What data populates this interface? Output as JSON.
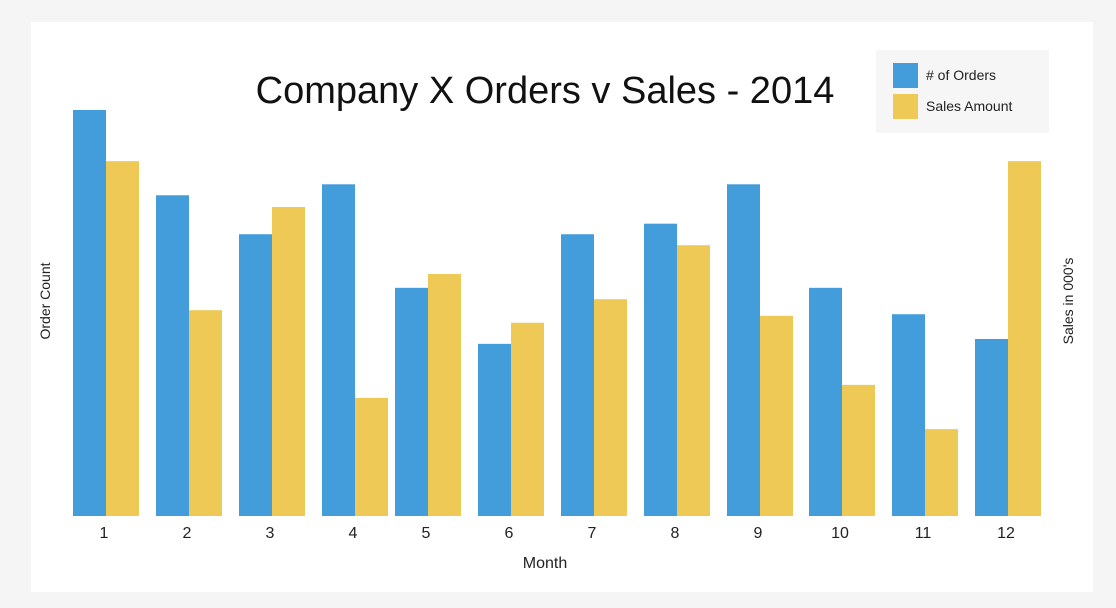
{
  "chart_data": {
    "type": "bar",
    "title": "Company X Orders v Sales - 2014",
    "xlabel": "Month",
    "ylabel_left": "Order Count",
    "ylabel_right": "Sales in 000's",
    "categories": [
      "1",
      "2",
      "3",
      "4",
      "5",
      "6",
      "7",
      "8",
      "9",
      "10",
      "11",
      "12"
    ],
    "series": [
      {
        "name": "# of Orders",
        "color": "#439ddb",
        "values": [
          100,
          79,
          69.4,
          81.7,
          56.2,
          42.4,
          69.4,
          72,
          81.7,
          56.2,
          49.7,
          43.6
        ]
      },
      {
        "name": "Sales Amount",
        "color": "#eec955",
        "values": [
          87.4,
          50.7,
          76.1,
          29.1,
          59.6,
          47.6,
          53.4,
          66.7,
          49.3,
          32.3,
          21.4,
          87.4
        ]
      }
    ],
    "ylim": [
      0,
      100
    ],
    "grid": false,
    "legend_position": "top-right"
  }
}
